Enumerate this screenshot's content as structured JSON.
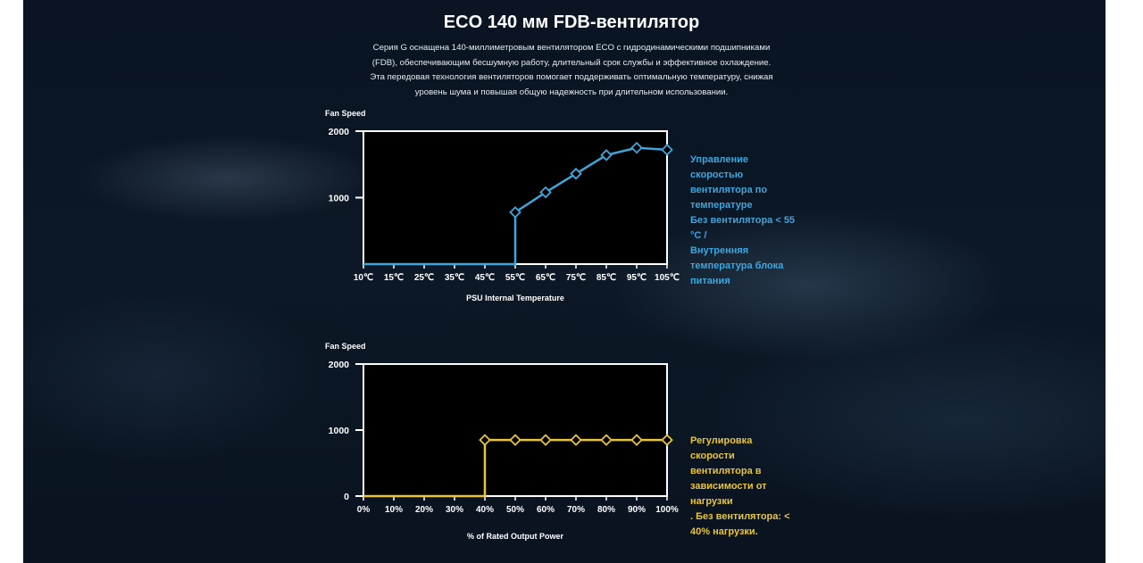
{
  "title": "ECO 140 мм FDB-вентилятор",
  "description": [
    "Серия G оснащена 140-миллиметровым вентилятором ECO с гидродинамическими подшипниками",
    "(FDB), обеспечивающим бесшумную работу, длительный срок службы и эффективное охлаждение.",
    "Эта передовая технология вентиляторов помогает поддерживать оптимальную температуру, снижая",
    "уровень шума и повышая общую надежность при длительном использовании."
  ],
  "colors": {
    "temp_series": "#3ea6dc",
    "load_series": "#e9c43b",
    "axis": "#ffffff",
    "plot_bg": "#000000"
  },
  "chart_data": [
    {
      "type": "line",
      "ylabel": "Fan Speed",
      "xlabel": "PSU Internal Temperature",
      "categories": [
        "10℃",
        "15℃",
        "25℃",
        "35℃",
        "45℃",
        "55℃",
        "65℃",
        "75℃",
        "85℃",
        "95℃",
        "105℃"
      ],
      "ylim": [
        0,
        2000
      ],
      "yticks": [
        "2000",
        "1000"
      ],
      "grid": false,
      "series": [
        {
          "values": [
            0,
            0,
            0,
            0,
            0,
            780,
            1080,
            1360,
            1640,
            1750,
            1720
          ],
          "marked_from": 5
        }
      ],
      "annotation": [
        "Управление",
        "скоростью",
        "вентилятора по",
        "температуре",
        "Без вентилятора < 55",
        "°C /",
        "Внутренняя",
        "температура блока",
        "питания"
      ]
    },
    {
      "type": "line",
      "ylabel": "Fan Speed",
      "xlabel": "% of Rated Output Power",
      "categories": [
        "0%",
        "10%",
        "20%",
        "30%",
        "40%",
        "50%",
        "60%",
        "70%",
        "80%",
        "90%",
        "100%"
      ],
      "ylim": [
        0,
        2000
      ],
      "yticks": [
        "2000",
        "1000",
        "0"
      ],
      "grid": false,
      "series": [
        {
          "values": [
            0,
            0,
            0,
            0,
            850,
            850,
            850,
            850,
            850,
            850,
            850
          ],
          "marked_from": 4
        }
      ],
      "annotation": [
        "Регулировка",
        "скорости",
        "вентилятора в",
        "зависимости от",
        "нагрузки",
        ". Без вентилятора: <",
        "40% нагрузки."
      ]
    }
  ]
}
